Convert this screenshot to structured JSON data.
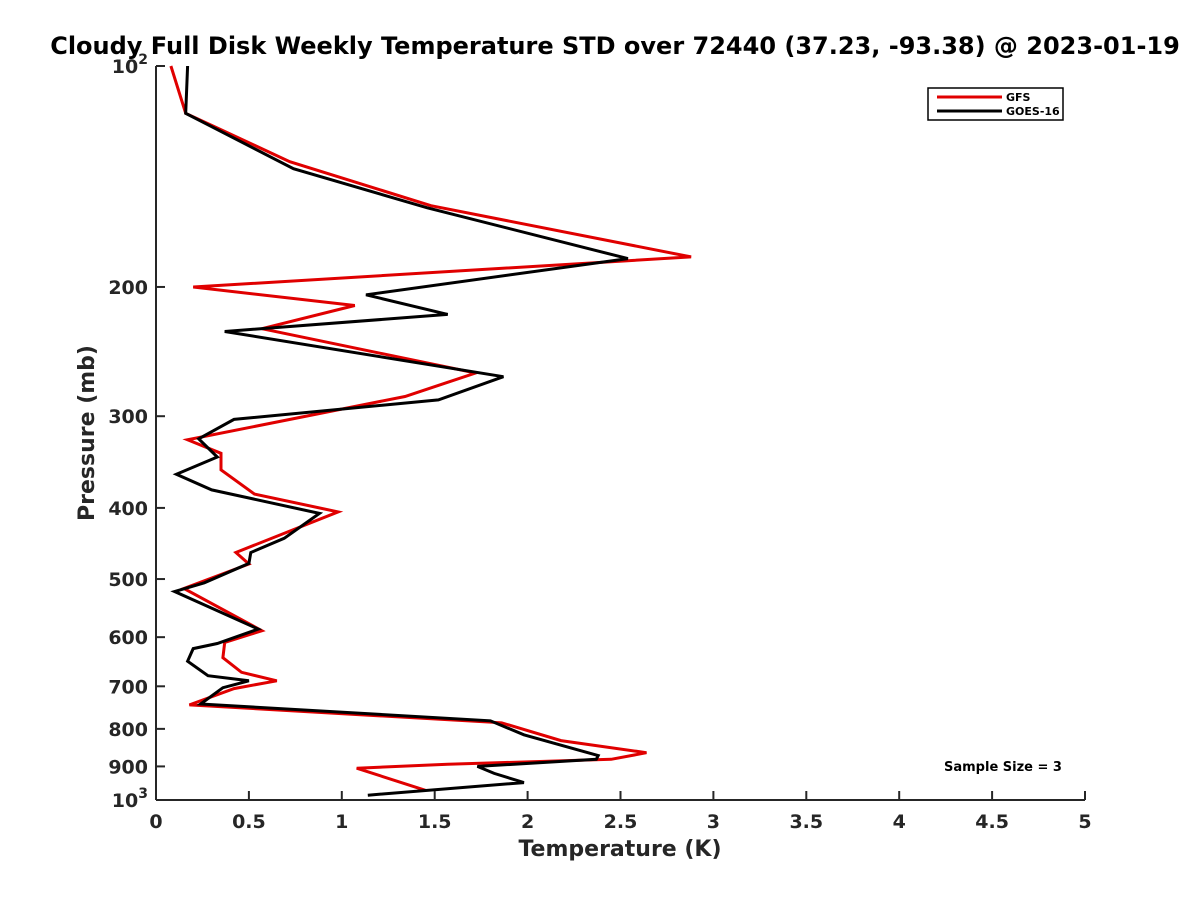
{
  "chart_data": {
    "type": "line",
    "title": "Cloudy Full Disk Weekly Temperature STD over 72440 (37.23, -93.38) @ 2023-01-19",
    "xlabel": "Temperature (K)",
    "ylabel": "Pressure (mb)",
    "xlim": [
      0,
      5
    ],
    "ylim": [
      100,
      1000
    ],
    "y_scale": "log",
    "y_reversed": true,
    "x_ticks": [
      0,
      0.5,
      1,
      1.5,
      2,
      2.5,
      3,
      3.5,
      4,
      4.5,
      5
    ],
    "x_tick_labels": [
      "0",
      "0.5",
      "1",
      "1.5",
      "2",
      "2.5",
      "3",
      "3.5",
      "4",
      "4.5",
      "5"
    ],
    "y_ticks": [
      100,
      200,
      300,
      400,
      500,
      600,
      700,
      800,
      900,
      1000
    ],
    "y_tick_labels": [
      {
        "base": "10",
        "exp": "2"
      },
      {
        "base": "200",
        "exp": ""
      },
      {
        "base": "300",
        "exp": ""
      },
      {
        "base": "400",
        "exp": ""
      },
      {
        "base": "500",
        "exp": ""
      },
      {
        "base": "600",
        "exp": ""
      },
      {
        "base": "700",
        "exp": ""
      },
      {
        "base": "800",
        "exp": ""
      },
      {
        "base": "900",
        "exp": ""
      },
      {
        "base": "10",
        "exp": "3"
      }
    ],
    "grid": false,
    "legend_position": "top-right",
    "annotation": "Sample Size = 3",
    "series": [
      {
        "name": "GFS",
        "color": "#e00000",
        "points": [
          [
            0.08,
            100
          ],
          [
            0.16,
            116
          ],
          [
            0.72,
            135
          ],
          [
            1.48,
            155
          ],
          [
            2.88,
            182
          ],
          [
            0.2,
            200
          ],
          [
            1.07,
            212
          ],
          [
            0.57,
            228
          ],
          [
            1.72,
            262
          ],
          [
            1.34,
            282
          ],
          [
            0.17,
            323
          ],
          [
            0.35,
            337
          ],
          [
            0.35,
            355
          ],
          [
            0.53,
            383
          ],
          [
            0.98,
            405
          ],
          [
            0.43,
            460
          ],
          [
            0.5,
            477
          ],
          [
            0.15,
            515
          ],
          [
            0.57,
            588
          ],
          [
            0.37,
            610
          ],
          [
            0.36,
            640
          ],
          [
            0.46,
            670
          ],
          [
            0.65,
            688
          ],
          [
            0.42,
            705
          ],
          [
            0.18,
            742
          ],
          [
            1.86,
            785
          ],
          [
            2.18,
            830
          ],
          [
            2.64,
            862
          ],
          [
            2.45,
            880
          ],
          [
            1.57,
            894
          ],
          [
            1.08,
            905
          ],
          [
            1.45,
            970
          ]
        ]
      },
      {
        "name": "GOES-16",
        "color": "#000000",
        "points": [
          [
            0.17,
            100
          ],
          [
            0.16,
            116
          ],
          [
            0.74,
            138
          ],
          [
            1.46,
            156
          ],
          [
            2.54,
            183
          ],
          [
            1.13,
            205
          ],
          [
            1.57,
            218
          ],
          [
            0.37,
            230
          ],
          [
            1.87,
            265
          ],
          [
            1.52,
            285
          ],
          [
            0.42,
            303
          ],
          [
            0.23,
            322
          ],
          [
            0.33,
            341
          ],
          [
            0.11,
            360
          ],
          [
            0.3,
            378
          ],
          [
            0.88,
            407
          ],
          [
            0.69,
            440
          ],
          [
            0.51,
            460
          ],
          [
            0.5,
            476
          ],
          [
            0.26,
            506
          ],
          [
            0.1,
            520
          ],
          [
            0.55,
            585
          ],
          [
            0.33,
            612
          ],
          [
            0.2,
            622
          ],
          [
            0.17,
            647
          ],
          [
            0.28,
            677
          ],
          [
            0.5,
            688
          ],
          [
            0.36,
            703
          ],
          [
            0.24,
            740
          ],
          [
            1.8,
            780
          ],
          [
            1.98,
            815
          ],
          [
            2.38,
            870
          ],
          [
            2.37,
            880
          ],
          [
            1.73,
            900
          ],
          [
            1.82,
            920
          ],
          [
            1.98,
            947
          ],
          [
            1.14,
            985
          ]
        ]
      }
    ]
  }
}
